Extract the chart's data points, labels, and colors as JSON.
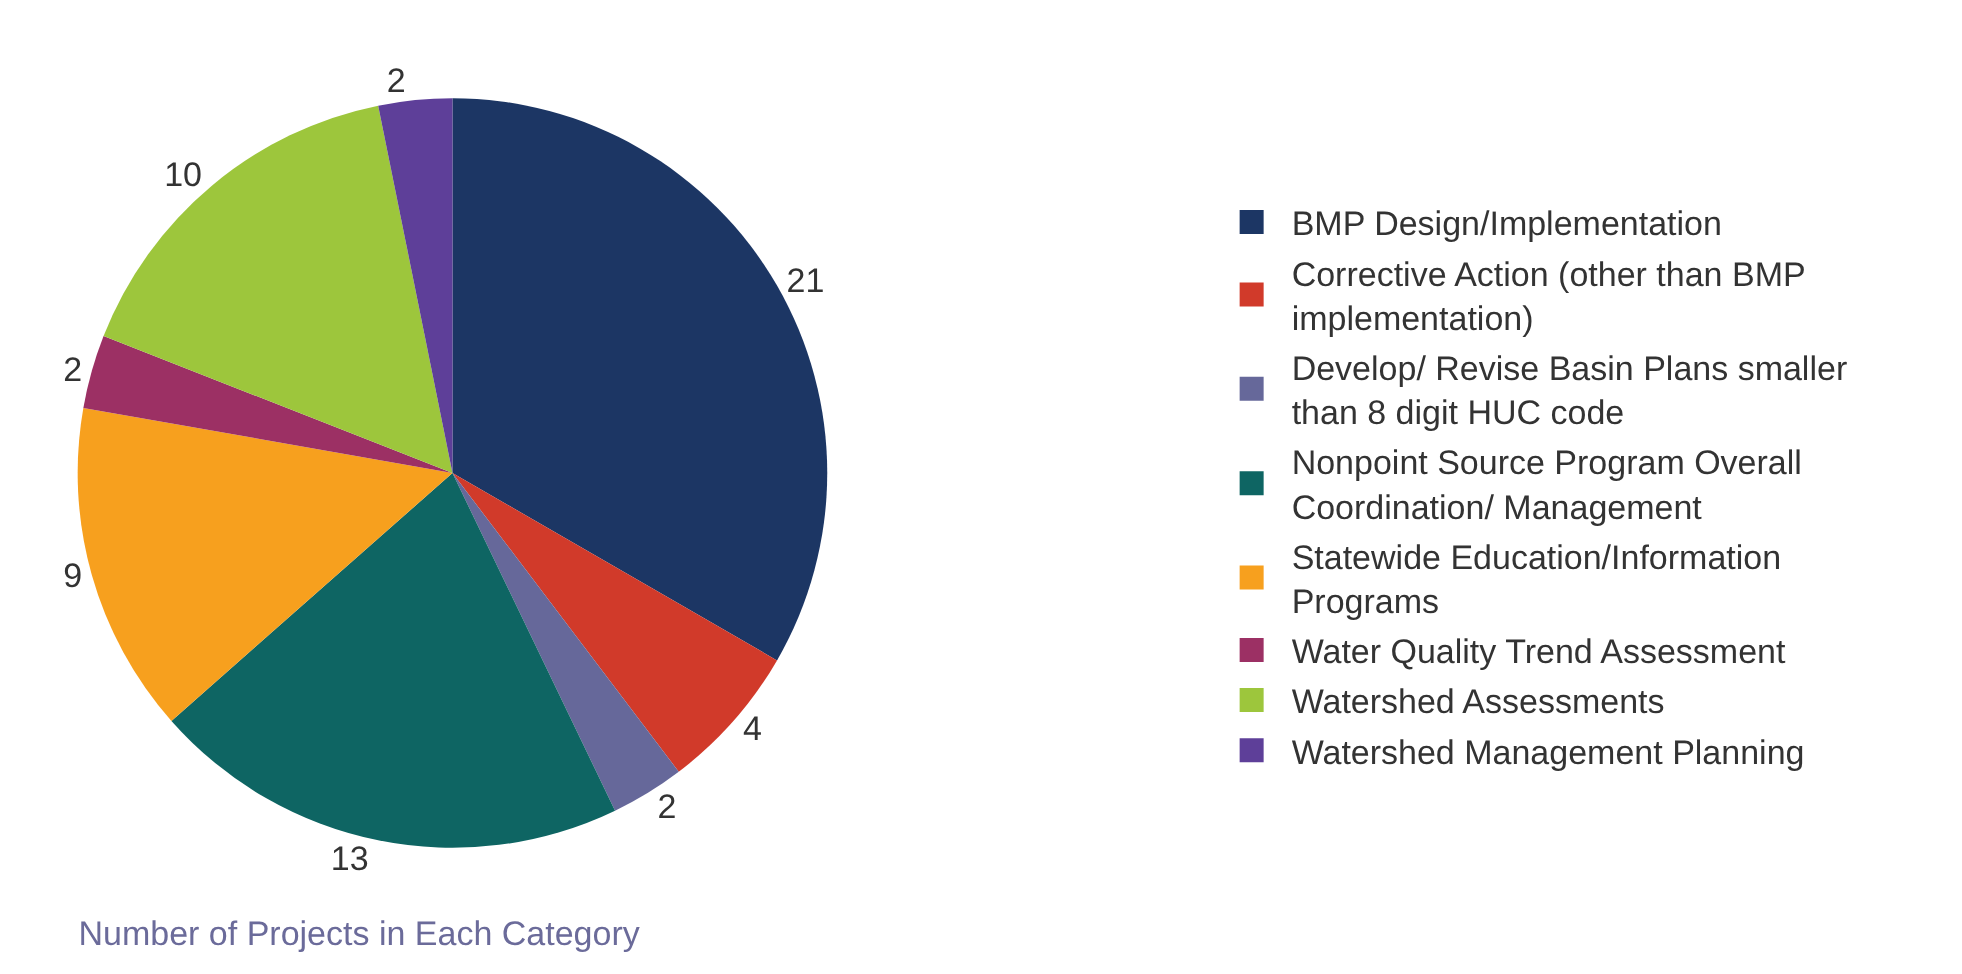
{
  "chart_data": {
    "type": "pie",
    "title": "Number of Projects in Each Category",
    "categories": [
      "BMP Design/Implementation",
      "Corrective Action (other than BMP implementation)",
      "Develop/ Revise Basin Plans smaller than 8 digit HUC code",
      "Nonpoint Source Program Overall Coordination/ Management",
      "Statewide Education/Information Programs",
      "Water Quality Trend Assessment",
      "Watershed Assessments",
      "Watershed Management Planning"
    ],
    "values": [
      21,
      4,
      2,
      13,
      9,
      2,
      10,
      2
    ],
    "colors": [
      "#1c3664",
      "#d13a2a",
      "#66689a",
      "#0e6563",
      "#f7a01e",
      "#9c3064",
      "#9dc63c",
      "#5e3f99"
    ],
    "data_labels": true,
    "legend": "right"
  }
}
